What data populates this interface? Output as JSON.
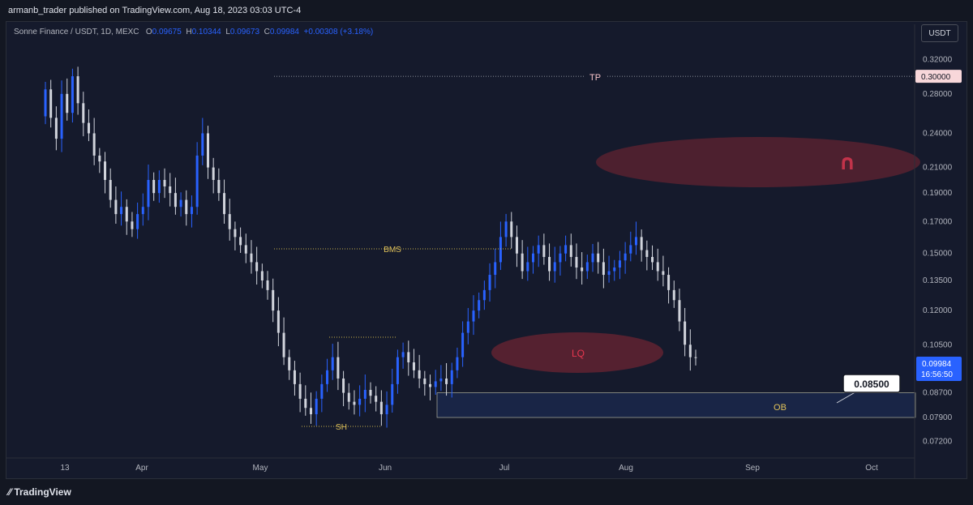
{
  "header": {
    "publisher": "armanb_trader published on TradingView.com, Aug 18, 2023 03:03 UTC-4"
  },
  "legend": {
    "symbol": "Sonne Finance / USDT, 1D, MEXC",
    "o_label": "O",
    "o_value": "0.09675",
    "h_label": "H",
    "h_value": "0.10344",
    "l_label": "L",
    "l_value": "0.09673",
    "c_label": "C",
    "c_value": "0.09984",
    "change": "+0.00308 (+3.18%)"
  },
  "currency_button": "USDT",
  "footer": {
    "brand": "TradingView"
  },
  "colors": {
    "bull": "#2962ff",
    "bear": "#d1d4dc",
    "ob_zone": "#1e2f5c",
    "lq_zone": "#6b2431",
    "tp_label_bg": "#f8d7da",
    "magnet": "#c2334a"
  },
  "chart_data": {
    "type": "candlestick",
    "scale": "log",
    "ylim": [
      0.0685,
      0.345
    ],
    "y_ticks": [
      "0.32000",
      "0.28000",
      "0.24000",
      "0.21000",
      "0.19000",
      "0.17000",
      "0.15000",
      "0.13500",
      "0.12000",
      "0.10500",
      "0.08700",
      "0.07900",
      "0.07200"
    ],
    "x_ticks": [
      "13",
      "Apr",
      "May",
      "Jun",
      "Jul",
      "Aug",
      "Sep",
      "Oct"
    ],
    "last_price": "0.09984",
    "countdown": "16:56:50",
    "annotations": {
      "tp_label": "TP",
      "tp_price": "0.30000",
      "bms_label": "BMS",
      "sh_label": "SH",
      "lq_label": "LQ",
      "ob_label": "OB",
      "target_price": "0.08500"
    },
    "closes": [
      0.285,
      0.255,
      0.235,
      0.28,
      0.26,
      0.3,
      0.27,
      0.25,
      0.24,
      0.22,
      0.215,
      0.2,
      0.185,
      0.175,
      0.18,
      0.17,
      0.165,
      0.175,
      0.18,
      0.2,
      0.19,
      0.2,
      0.195,
      0.19,
      0.18,
      0.185,
      0.175,
      0.18,
      0.22,
      0.24,
      0.21,
      0.2,
      0.19,
      0.175,
      0.165,
      0.16,
      0.155,
      0.15,
      0.145,
      0.14,
      0.135,
      0.13,
      0.12,
      0.11,
      0.1,
      0.095,
      0.09,
      0.085,
      0.082,
      0.08,
      0.085,
      0.09,
      0.095,
      0.1,
      0.092,
      0.087,
      0.084,
      0.083,
      0.085,
      0.088,
      0.086,
      0.084,
      0.08,
      0.083,
      0.09,
      0.1,
      0.102,
      0.098,
      0.095,
      0.092,
      0.09,
      0.089,
      0.091,
      0.092,
      0.09,
      0.095,
      0.1,
      0.11,
      0.115,
      0.12,
      0.125,
      0.13,
      0.138,
      0.145,
      0.16,
      0.17,
      0.16,
      0.15,
      0.14,
      0.145,
      0.15,
      0.155,
      0.148,
      0.14,
      0.145,
      0.15,
      0.155,
      0.148,
      0.142,
      0.14,
      0.145,
      0.15,
      0.145,
      0.138,
      0.14,
      0.142,
      0.146,
      0.15,
      0.155,
      0.16,
      0.152,
      0.148,
      0.145,
      0.14,
      0.138,
      0.13,
      0.125,
      0.115,
      0.105,
      0.1,
      0.0998
    ]
  }
}
